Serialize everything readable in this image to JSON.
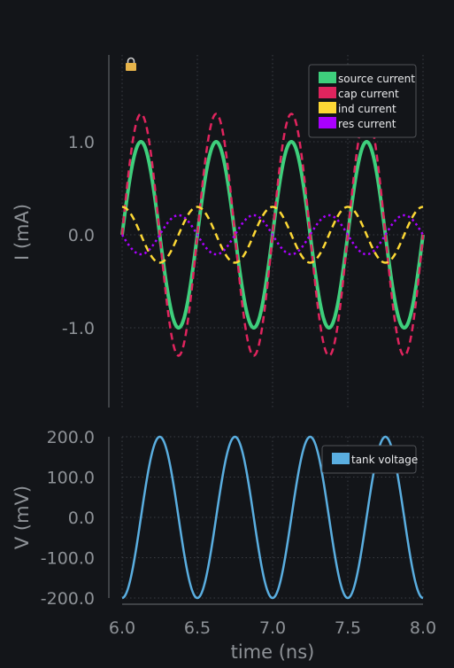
{
  "chart_data": [
    {
      "type": "line",
      "ylabel": "I (mA)",
      "xlim": [
        6.0,
        8.0
      ],
      "ylim": [
        -1.8,
        1.9
      ],
      "yticks": [
        "1.0",
        "0.0",
        "-1.0"
      ],
      "ytick_values": [
        1.0,
        0.0,
        -1.0
      ],
      "xtick_values": [
        6.0,
        6.5,
        7.0,
        7.5,
        8.0
      ],
      "grid": true,
      "legend_position": "top-right",
      "lock_icon": "lock-icon",
      "series": [
        {
          "name": "source current",
          "color": "#3ecf7c",
          "style": "solid",
          "amplitude": 1.0,
          "period": 0.5,
          "phase_x": 6.0,
          "offset": 0.0
        },
        {
          "name": "cap current",
          "color": "#e0245e",
          "style": "dashed",
          "amplitude": 1.3,
          "period": 0.5,
          "phase_x": 6.0,
          "offset": 0.0
        },
        {
          "name": "ind current",
          "color": "#fdd835",
          "style": "dashed",
          "amplitude": 0.3,
          "period": 0.5,
          "phase_x": 6.125,
          "offset": 0.0,
          "invert": true
        },
        {
          "name": "res current",
          "color": "#aa00ff",
          "style": "dotted",
          "amplitude": 0.21,
          "period": 0.5,
          "phase_x": 6.125,
          "offset": 0.0,
          "negate_cos": true
        }
      ]
    },
    {
      "type": "line",
      "xlabel": "time (ns)",
      "ylabel": "V (mV)",
      "xlim": [
        6.0,
        8.0
      ],
      "ylim": [
        -200.0,
        200.0
      ],
      "yticks": [
        "200.0",
        "100.0",
        "0.0",
        "-100.0",
        "-200.0"
      ],
      "ytick_values": [
        200.0,
        100.0,
        0.0,
        -100.0,
        -200.0
      ],
      "xticks": [
        "6.0",
        "6.5",
        "7.0",
        "7.5",
        "8.0"
      ],
      "xtick_values": [
        6.0,
        6.5,
        7.0,
        7.5,
        8.0
      ],
      "grid": true,
      "legend_position": "top-right",
      "series": [
        {
          "name": "tank voltage",
          "color": "#5aaee0",
          "style": "solid",
          "amplitude": 200.0,
          "period": 0.5,
          "phase_x": 6.0,
          "offset": 0.0,
          "negate_cos": true
        }
      ]
    }
  ]
}
